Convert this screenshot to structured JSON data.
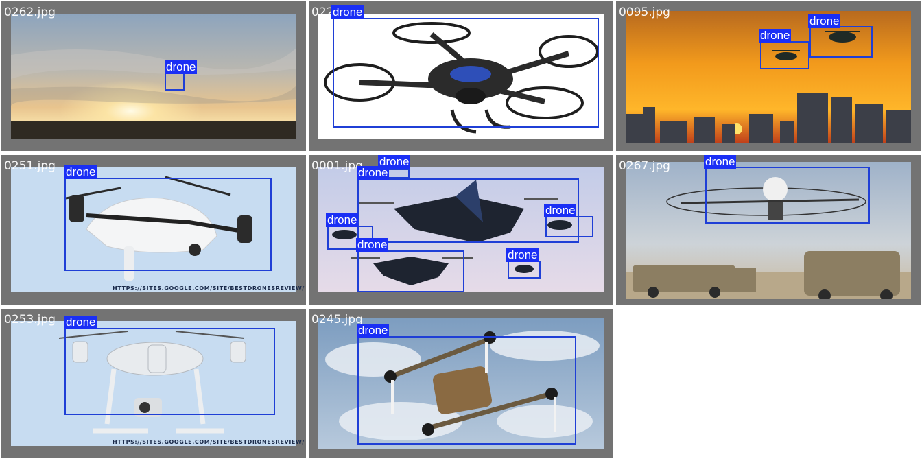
{
  "tiles": [
    {
      "filename": "0262.jpg",
      "detections": [
        {
          "label": "drone"
        }
      ]
    },
    {
      "filename": "0221.jpg",
      "detections": [
        {
          "label": "drone"
        }
      ]
    },
    {
      "filename": "0095.jpg",
      "detections": [
        {
          "label": "drone"
        },
        {
          "label": "drone"
        }
      ]
    },
    {
      "filename": "0251.jpg",
      "detections": [
        {
          "label": "drone"
        }
      ],
      "watermark": "HTTPS://SITES.GOOGLE.COM/SITE/BESTDRONESREVIEW/"
    },
    {
      "filename": "0001.jpg",
      "detections": [
        {
          "label": "drone"
        },
        {
          "label": "drone"
        },
        {
          "label": "drone"
        },
        {
          "label": "drone"
        },
        {
          "label": "drone"
        },
        {
          "label": "drone"
        }
      ]
    },
    {
      "filename": "0267.jpg",
      "detections": [
        {
          "label": "drone"
        }
      ]
    },
    {
      "filename": "0253.jpg",
      "detections": [
        {
          "label": "drone"
        }
      ],
      "watermark": "HTTPS://SITES.GOOGLE.COM/SITE/BESTDRONESREVIEW/"
    },
    {
      "filename": "0245.jpg",
      "detections": [
        {
          "label": "drone"
        }
      ]
    }
  ],
  "colors": {
    "box": "#1f3fd6",
    "label_bg": "#1a2ff5",
    "tile_bg": "#737373"
  }
}
